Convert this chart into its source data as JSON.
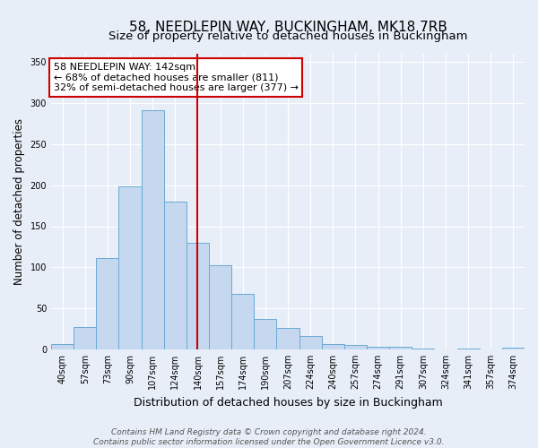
{
  "title": "58, NEEDLEPIN WAY, BUCKINGHAM, MK18 7RB",
  "subtitle": "Size of property relative to detached houses in Buckingham",
  "xlabel": "Distribution of detached houses by size in Buckingham",
  "ylabel": "Number of detached properties",
  "categories": [
    "40sqm",
    "57sqm",
    "73sqm",
    "90sqm",
    "107sqm",
    "124sqm",
    "140sqm",
    "157sqm",
    "174sqm",
    "190sqm",
    "207sqm",
    "224sqm",
    "240sqm",
    "257sqm",
    "274sqm",
    "291sqm",
    "307sqm",
    "324sqm",
    "341sqm",
    "357sqm",
    "374sqm"
  ],
  "values": [
    7,
    27,
    111,
    199,
    291,
    180,
    130,
    103,
    68,
    37,
    26,
    16,
    7,
    5,
    3,
    3,
    1,
    0,
    1,
    0,
    2
  ],
  "bar_color": "#c5d8ef",
  "bar_edge_color": "#6aaad4",
  "annotation_text_line1": "58 NEEDLEPIN WAY: 142sqm",
  "annotation_text_line2": "← 68% of detached houses are smaller (811)",
  "annotation_text_line3": "32% of semi-detached houses are larger (377) →",
  "annotation_box_facecolor": "#ffffff",
  "annotation_box_edgecolor": "#cc0000",
  "vline_color": "#cc0000",
  "vline_index": 6.5,
  "ylim": [
    0,
    360
  ],
  "yticks": [
    0,
    50,
    100,
    150,
    200,
    250,
    300,
    350
  ],
  "background_color": "#e8eef8",
  "grid_color": "#ffffff",
  "footer_line1": "Contains HM Land Registry data © Crown copyright and database right 2024.",
  "footer_line2": "Contains public sector information licensed under the Open Government Licence v3.0.",
  "title_fontsize": 11,
  "subtitle_fontsize": 9.5,
  "xlabel_fontsize": 9,
  "ylabel_fontsize": 8.5,
  "tick_fontsize": 7,
  "annotation_fontsize": 8,
  "footer_fontsize": 6.5
}
